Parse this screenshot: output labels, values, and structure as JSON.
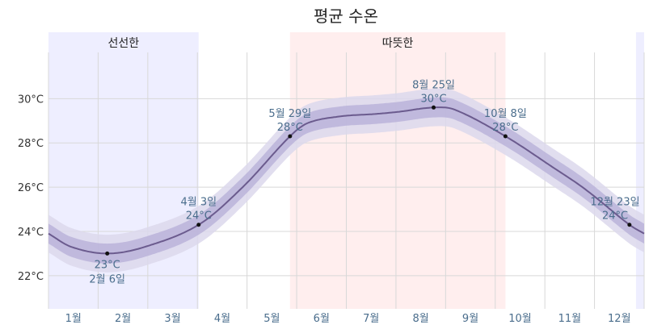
{
  "chart_data": {
    "type": "line",
    "title": "평균 수온",
    "xlabel": "",
    "ylabel": "",
    "ylim": [
      20.5,
      33
    ],
    "y_ticks": [
      22,
      24,
      26,
      28,
      30
    ],
    "y_tick_labels": [
      "22°C",
      "24°C",
      "26°C",
      "28°C",
      "30°C"
    ],
    "y_unit": "°C",
    "months": [
      "1월",
      "2월",
      "3월",
      "4월",
      "5월",
      "6월",
      "7월",
      "8월",
      "9월",
      "10월",
      "11월",
      "12월"
    ],
    "seasons": [
      {
        "label": "선선한",
        "start_day": 1,
        "end_day": 93,
        "color": "#eeeeff"
      },
      {
        "label": "",
        "start_day": 361,
        "end_day": 366,
        "color": "#eeeeff"
      },
      {
        "label": "따뜻한",
        "start_day": 149,
        "end_day": 281,
        "color": "#ffeeee"
      }
    ],
    "series": [
      {
        "x": [
          1,
          15,
          37,
          60,
          93,
          120,
          149,
          160,
          180,
          200,
          215,
          237,
          250,
          281,
          310,
          330,
          357,
          366
        ],
        "y": [
          23.9,
          23.3,
          23.0,
          23.3,
          24.3,
          26.0,
          28.3,
          28.9,
          29.2,
          29.3,
          29.4,
          29.6,
          29.5,
          28.3,
          26.9,
          25.9,
          24.3,
          23.9
        ],
        "band_inner": 0.45,
        "band_outer": 0.85
      }
    ],
    "annotations": [
      {
        "day": 37,
        "value": 23.0,
        "date": "2월 6일",
        "temp": "23°C",
        "position": "below"
      },
      {
        "day": 93,
        "value": 24.3,
        "date": "4월 3일",
        "temp": "24°C",
        "position": "above"
      },
      {
        "day": 149,
        "value": 28.3,
        "date": "5월 29일",
        "temp": "28°C",
        "position": "above"
      },
      {
        "day": 237,
        "value": 29.6,
        "date": "8월 25일",
        "temp": "30°C",
        "position": "above"
      },
      {
        "day": 281,
        "value": 28.3,
        "date": "10월 8일",
        "temp": "28°C",
        "position": "above"
      },
      {
        "day": 357,
        "value": 24.3,
        "date": "12월 23일",
        "temp": "24°C",
        "position": "above"
      }
    ],
    "colors": {
      "line": "#6b5b8e",
      "band_inner": "#b8b0d8",
      "band_outer": "#dcd8ec",
      "grid": "#d8d8d8",
      "cool_season": "#eeeeff",
      "warm_season": "#ffeeee",
      "annotation": "#4a6d8c"
    }
  }
}
